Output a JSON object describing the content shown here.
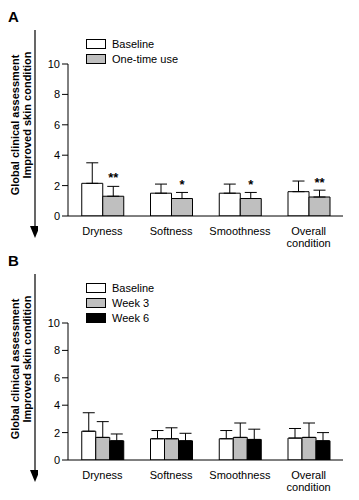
{
  "chart_data": [
    {
      "type": "bar",
      "title": "A",
      "y_label": [
        "Global clinical assessment",
        "Improved skin condition"
      ],
      "categories": [
        "Dryness",
        "Softness",
        "Smoothness",
        "Overall condition"
      ],
      "ylim": [
        0,
        10
      ],
      "yticks": [
        0,
        2,
        4,
        6,
        8,
        10
      ],
      "grid": false,
      "legend": "upper left",
      "series": [
        {
          "name": "Baseline",
          "color": "#ffffff",
          "values": [
            2.15,
            1.5,
            1.5,
            1.6
          ],
          "errors": [
            1.35,
            0.6,
            0.6,
            0.7
          ]
        },
        {
          "name": "One-time use",
          "color": "#bfbfbf",
          "values": [
            1.3,
            1.15,
            1.15,
            1.25
          ],
          "errors": [
            0.65,
            0.4,
            0.4,
            0.45
          ],
          "significance": [
            "**",
            "*",
            "*",
            "**"
          ]
        }
      ]
    },
    {
      "type": "bar",
      "title": "B",
      "y_label": [
        "Global clinical assessment",
        "Improved skin condition"
      ],
      "categories": [
        "Dryness",
        "Softness",
        "Smoothness",
        "Overall condition"
      ],
      "ylim": [
        0,
        10
      ],
      "yticks": [
        0,
        2,
        4,
        6,
        8,
        10
      ],
      "grid": false,
      "legend": "upper left",
      "series": [
        {
          "name": "Baseline",
          "color": "#ffffff",
          "values": [
            2.1,
            1.55,
            1.55,
            1.6
          ],
          "errors": [
            1.35,
            0.6,
            0.6,
            0.7
          ]
        },
        {
          "name": "Week 3",
          "color": "#bfbfbf",
          "values": [
            1.65,
            1.55,
            1.65,
            1.65
          ],
          "errors": [
            1.15,
            0.8,
            1.05,
            1.05
          ]
        },
        {
          "name": "Week 6",
          "color": "#000000",
          "values": [
            1.4,
            1.4,
            1.5,
            1.4
          ],
          "errors": [
            0.5,
            0.55,
            0.75,
            0.6
          ]
        }
      ]
    }
  ]
}
